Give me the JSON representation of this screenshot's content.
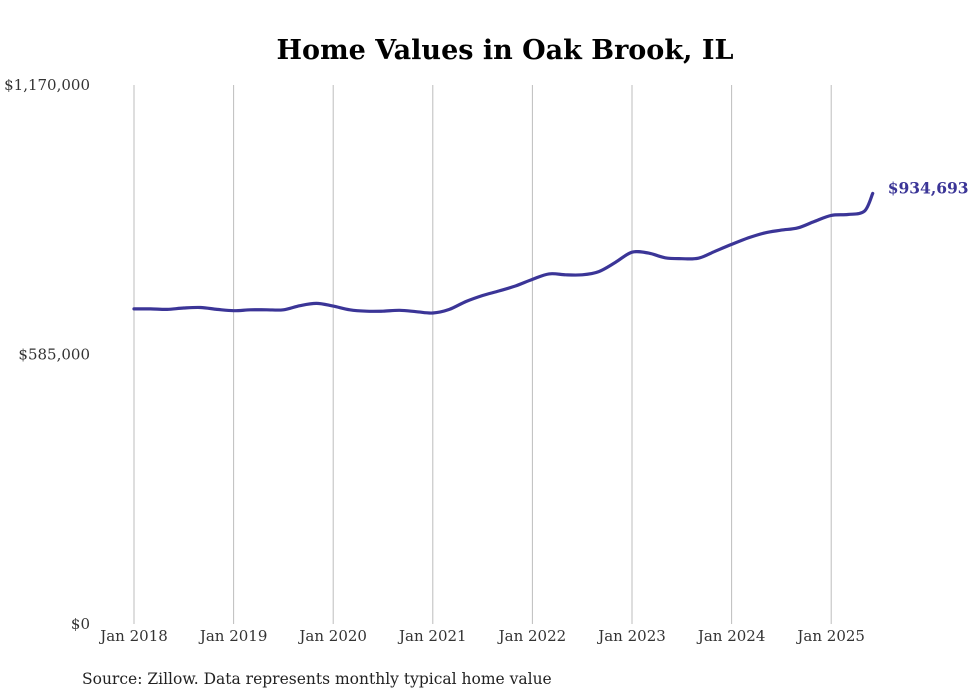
{
  "chart_data": {
    "type": "line",
    "title": "Home Values in Oak Brook, IL",
    "source": "Source: Zillow. Data represents monthly typical home value",
    "xlabel": "",
    "ylabel": "",
    "ylim": [
      0,
      1170000
    ],
    "y_ticks": [
      "$0",
      "$585,000",
      "$1,170,000"
    ],
    "x_ticks": [
      "Jan 2018",
      "Jan 2019",
      "Jan 2020",
      "Jan 2021",
      "Jan 2022",
      "Jan 2023",
      "Jan 2024",
      "Jan 2025"
    ],
    "grid": "vertical",
    "line_color": "#3b3597",
    "end_label": "$934,693",
    "series": [
      {
        "x": [
          "Jan 2018",
          "Mar 2018",
          "May 2018",
          "Jul 2018",
          "Sep 2018",
          "Nov 2018",
          "Jan 2019",
          "Mar 2019",
          "May 2019",
          "Jul 2019",
          "Sep 2019",
          "Nov 2019",
          "Jan 2020",
          "Mar 2020",
          "May 2020",
          "Jul 2020",
          "Sep 2020",
          "Nov 2020",
          "Jan 2021",
          "Mar 2021",
          "May 2021",
          "Jul 2021",
          "Sep 2021",
          "Nov 2021",
          "Jan 2022",
          "Mar 2022",
          "May 2022",
          "Jul 2022",
          "Sep 2022",
          "Nov 2022",
          "Jan 2023",
          "Mar 2023",
          "May 2023",
          "Jul 2023",
          "Sep 2023",
          "Nov 2023",
          "Jan 2024",
          "Mar 2024",
          "May 2024",
          "Jul 2024",
          "Sep 2024",
          "Nov 2024",
          "Jan 2025",
          "Mar 2025",
          "May 2025",
          "Jun 2025"
        ],
        "values": [
          684000,
          684000,
          683000,
          686000,
          687000,
          683000,
          680000,
          682000,
          682000,
          682000,
          691000,
          696000,
          690000,
          682000,
          679000,
          679000,
          681000,
          678000,
          675000,
          683000,
          700000,
          713000,
          723000,
          734000,
          748000,
          760000,
          758000,
          758000,
          765000,
          785000,
          807000,
          805000,
          795000,
          793000,
          794000,
          809000,
          824000,
          838000,
          849000,
          855000,
          860000,
          874000,
          887000,
          889000,
          896000,
          934693
        ]
      }
    ]
  }
}
